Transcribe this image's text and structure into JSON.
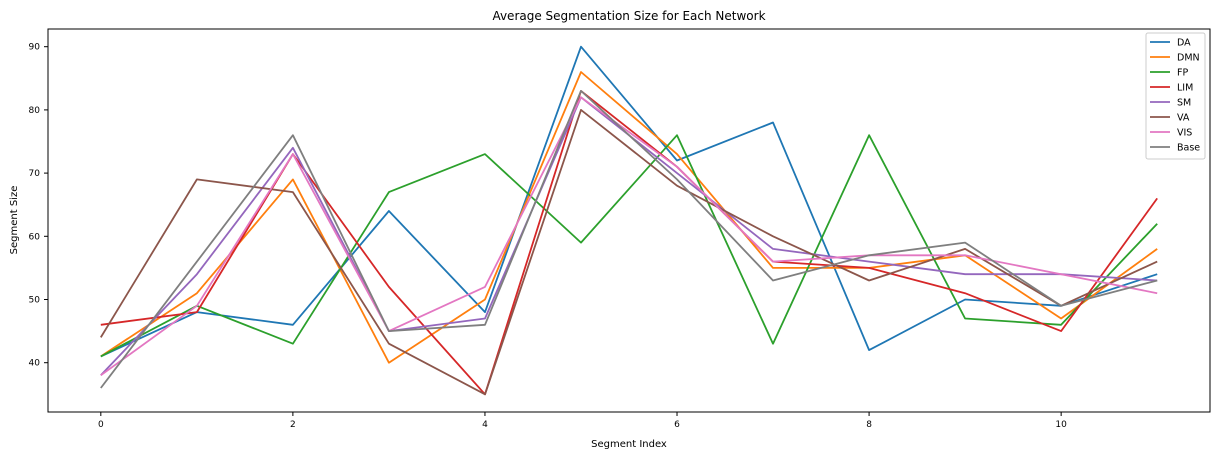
{
  "chart_data": {
    "type": "line",
    "title": "Average Segmentation Size for Each Network",
    "xlabel": "Segment Index",
    "ylabel": "Segment Size",
    "x": [
      0,
      1,
      2,
      3,
      4,
      5,
      6,
      7,
      8,
      9,
      10,
      11
    ],
    "xlim": [
      -0.55,
      11.55
    ],
    "ylim": [
      32.2,
      92.8
    ],
    "xticks": [
      0,
      2,
      4,
      6,
      8,
      10
    ],
    "yticks": [
      40,
      50,
      60,
      70,
      80,
      90
    ],
    "grid": false,
    "legend_position": "top-right",
    "series": [
      {
        "name": "DA",
        "color": "#1f77b4",
        "values": [
          41,
          48,
          46,
          64,
          48,
          90,
          72,
          78,
          42,
          50,
          49,
          54
        ]
      },
      {
        "name": "DMN",
        "color": "#ff7f0e",
        "values": [
          41,
          51,
          69,
          40,
          50,
          86,
          73,
          55,
          55,
          57,
          47,
          58
        ]
      },
      {
        "name": "FP",
        "color": "#2ca02c",
        "values": [
          41,
          49,
          43,
          67,
          73,
          59,
          76,
          43,
          76,
          47,
          46,
          62
        ]
      },
      {
        "name": "LIM",
        "color": "#d62728",
        "values": [
          46,
          48,
          73,
          52,
          35,
          83,
          71,
          56,
          55,
          51,
          45,
          66
        ]
      },
      {
        "name": "SM",
        "color": "#9467bd",
        "values": [
          38,
          54,
          74,
          45,
          47,
          82,
          70,
          58,
          56,
          54,
          54,
          53
        ]
      },
      {
        "name": "VA",
        "color": "#8c564b",
        "values": [
          44,
          69,
          67,
          43,
          35,
          80,
          68,
          60,
          53,
          58,
          49,
          56
        ]
      },
      {
        "name": "VIS",
        "color": "#e377c2",
        "values": [
          38,
          49,
          73,
          45,
          52,
          82,
          71,
          56,
          57,
          57,
          54,
          51
        ]
      },
      {
        "name": "Base",
        "color": "#7f7f7f",
        "values": [
          36,
          56,
          76,
          45,
          46,
          83,
          69,
          53,
          57,
          59,
          49,
          53
        ]
      }
    ]
  }
}
